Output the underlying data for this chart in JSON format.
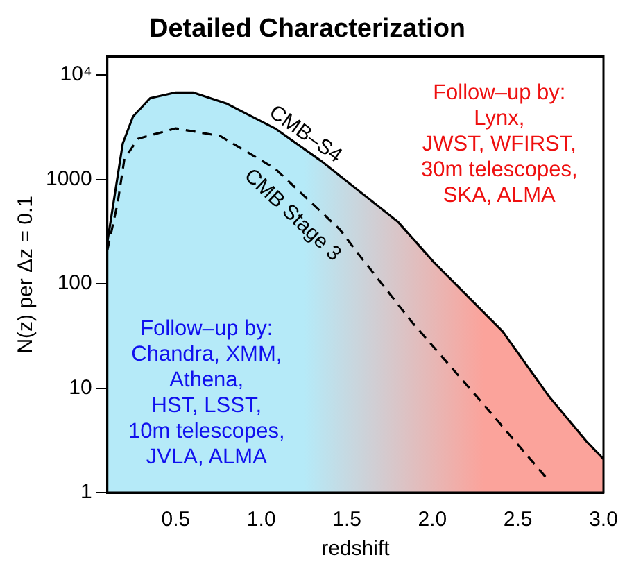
{
  "chart_data": {
    "type": "line",
    "title": "Detailed Characterization",
    "xlabel": "redshift",
    "ylabel": "N(z) per Δz = 0.1",
    "log": "y",
    "grid": false,
    "legend": false,
    "marker": "none",
    "xlim": [
      0.1,
      3.0
    ],
    "xticks": [
      0.5,
      {
        "value": 1,
        "label": "1.0"
      },
      1.5,
      {
        "value": 2,
        "label": "2.0"
      },
      2.5,
      {
        "value": 3,
        "label": "3.0"
      }
    ],
    "ylim": [
      1,
      15000
    ],
    "yticks": [
      1,
      10,
      100,
      1000,
      {
        "value": 10000,
        "label": "10⁴"
      }
    ],
    "series": [
      {
        "name": "CMB–S4",
        "type": "area",
        "color": "#000000",
        "line_style": "solid",
        "x": [
          0.1,
          0.19,
          0.25,
          0.35,
          0.5,
          0.6,
          0.8,
          1.08,
          1.35,
          1.8,
          2.01,
          2.41,
          2.68,
          2.9,
          3.0
        ],
        "values": [
          250,
          2200,
          4000,
          6000,
          6800,
          6800,
          5300,
          3080,
          1500,
          390,
          160,
          35,
          8.4,
          3.1,
          2.1
        ]
      },
      {
        "name": "CMB Stage 3",
        "type": "line",
        "color": "#000000",
        "line_style": "dashed",
        "x": [
          0.1,
          0.16,
          0.2,
          0.28,
          0.5,
          0.76,
          1.08,
          1.46,
          1.56,
          1.88,
          2.28,
          2.68
        ],
        "values": [
          210,
          590,
          1580,
          2450,
          3080,
          2600,
          1270,
          330,
          200,
          43,
          7.6,
          1.3
        ]
      }
    ],
    "annotations": [
      "Follow–up by:\nChandra, XMM,\nAthena,\nHST, LSST,\n10m telescopes,\nJVLA, ALMA",
      "Follow–up by:\nLynx,\nJWST, WFIRST,\n30m telescopes,\nSKA, ALMA"
    ]
  }
}
